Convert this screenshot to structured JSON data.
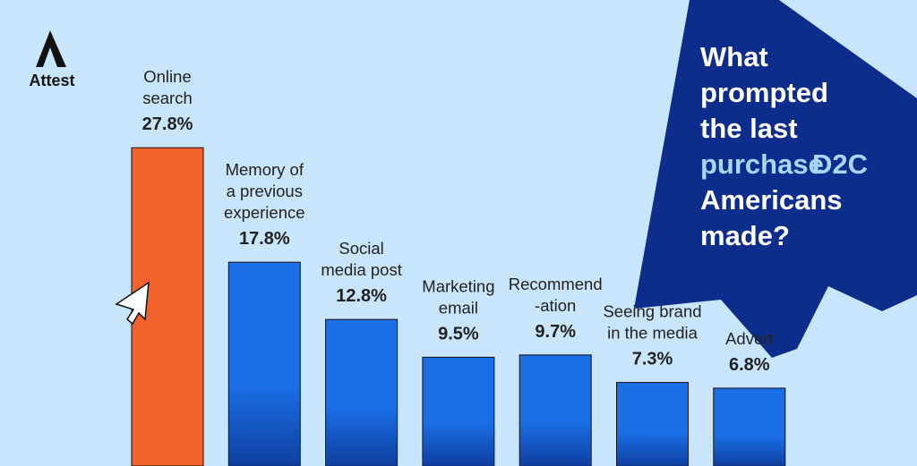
{
  "chart_data": {
    "type": "bar",
    "brand": "Attest",
    "title": [
      "What",
      "prompted",
      "the last",
      "D2C",
      "purchase",
      "Americans",
      "made?"
    ],
    "title_highlight": [
      false,
      false,
      false,
      true,
      true,
      false,
      false
    ],
    "title_color": "#ffffff",
    "highlight_color": "#a9d6ff",
    "categories": [
      [
        "Online",
        "search"
      ],
      [
        "Memory of",
        "a previous",
        "experience"
      ],
      [
        "Social",
        "media post"
      ],
      [
        "Marketing",
        "email"
      ],
      [
        "Recommend",
        "-ation"
      ],
      [
        "Seeing brand",
        "in the media"
      ],
      [
        "Advert"
      ]
    ],
    "values": [
      27.8,
      17.8,
      12.8,
      9.5,
      9.7,
      7.3,
      6.8
    ],
    "value_labels": [
      "27.8%",
      "17.8%",
      "12.8%",
      "9.5%",
      "9.7%",
      "7.3%",
      "6.8%"
    ],
    "colors": [
      "#f4622c",
      "#1a6fe6",
      "#1a6fe6",
      "#1a6fe6",
      "#1a6fe6",
      "#1a6fe6",
      "#1a6fe6"
    ]
  }
}
